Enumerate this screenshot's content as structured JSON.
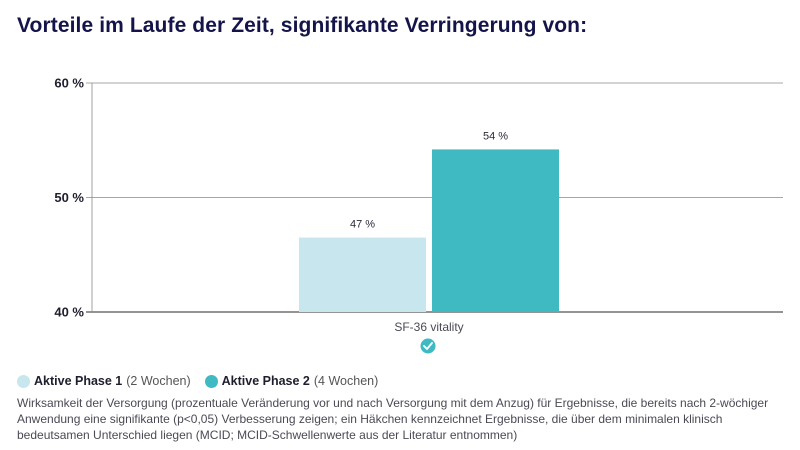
{
  "title": "Vorteile im Laufe der Zeit, signifikante Verringerung von:",
  "chart_data": {
    "type": "bar",
    "title": "Vorteile im Laufe der Zeit, signifikante Verringerung von:",
    "categories": [
      "SF-36 vitality"
    ],
    "series": [
      {
        "name": "Aktive Phase 1",
        "duration": "(2 Wochen)",
        "values": [
          46.5
        ],
        "label": "47 %",
        "color": "#c8e6ee"
      },
      {
        "name": "Aktive Phase 2",
        "duration": "(4 Wochen)",
        "values": [
          54.2
        ],
        "label": "54 %",
        "color": "#3fbac2"
      }
    ],
    "ylim": [
      40,
      60
    ],
    "yticks": [
      40,
      50,
      60
    ],
    "ytick_labels": [
      "40 %",
      "50 %",
      "60 %"
    ],
    "grid": true,
    "xlabel": "",
    "ylabel": "",
    "mcid_marked": [
      true
    ],
    "marker_color": "#3fbac2",
    "legend_position": "bottom-left"
  },
  "footnote": "Wirksamkeit der Versorgung (prozentuale Veränderung vor und nach Versorgung mit dem Anzug) für Ergebnisse, die bereits nach 2-wöchiger Anwendung eine signifikante (p<0,05) Verbesserung zeigen; ein Häkchen kennzeichnet Ergebnisse, die über dem minimalen klinisch bedeutsamen Unterschied liegen (MCID; MCID-Schwellenwerte aus der Literatur entnommen)"
}
